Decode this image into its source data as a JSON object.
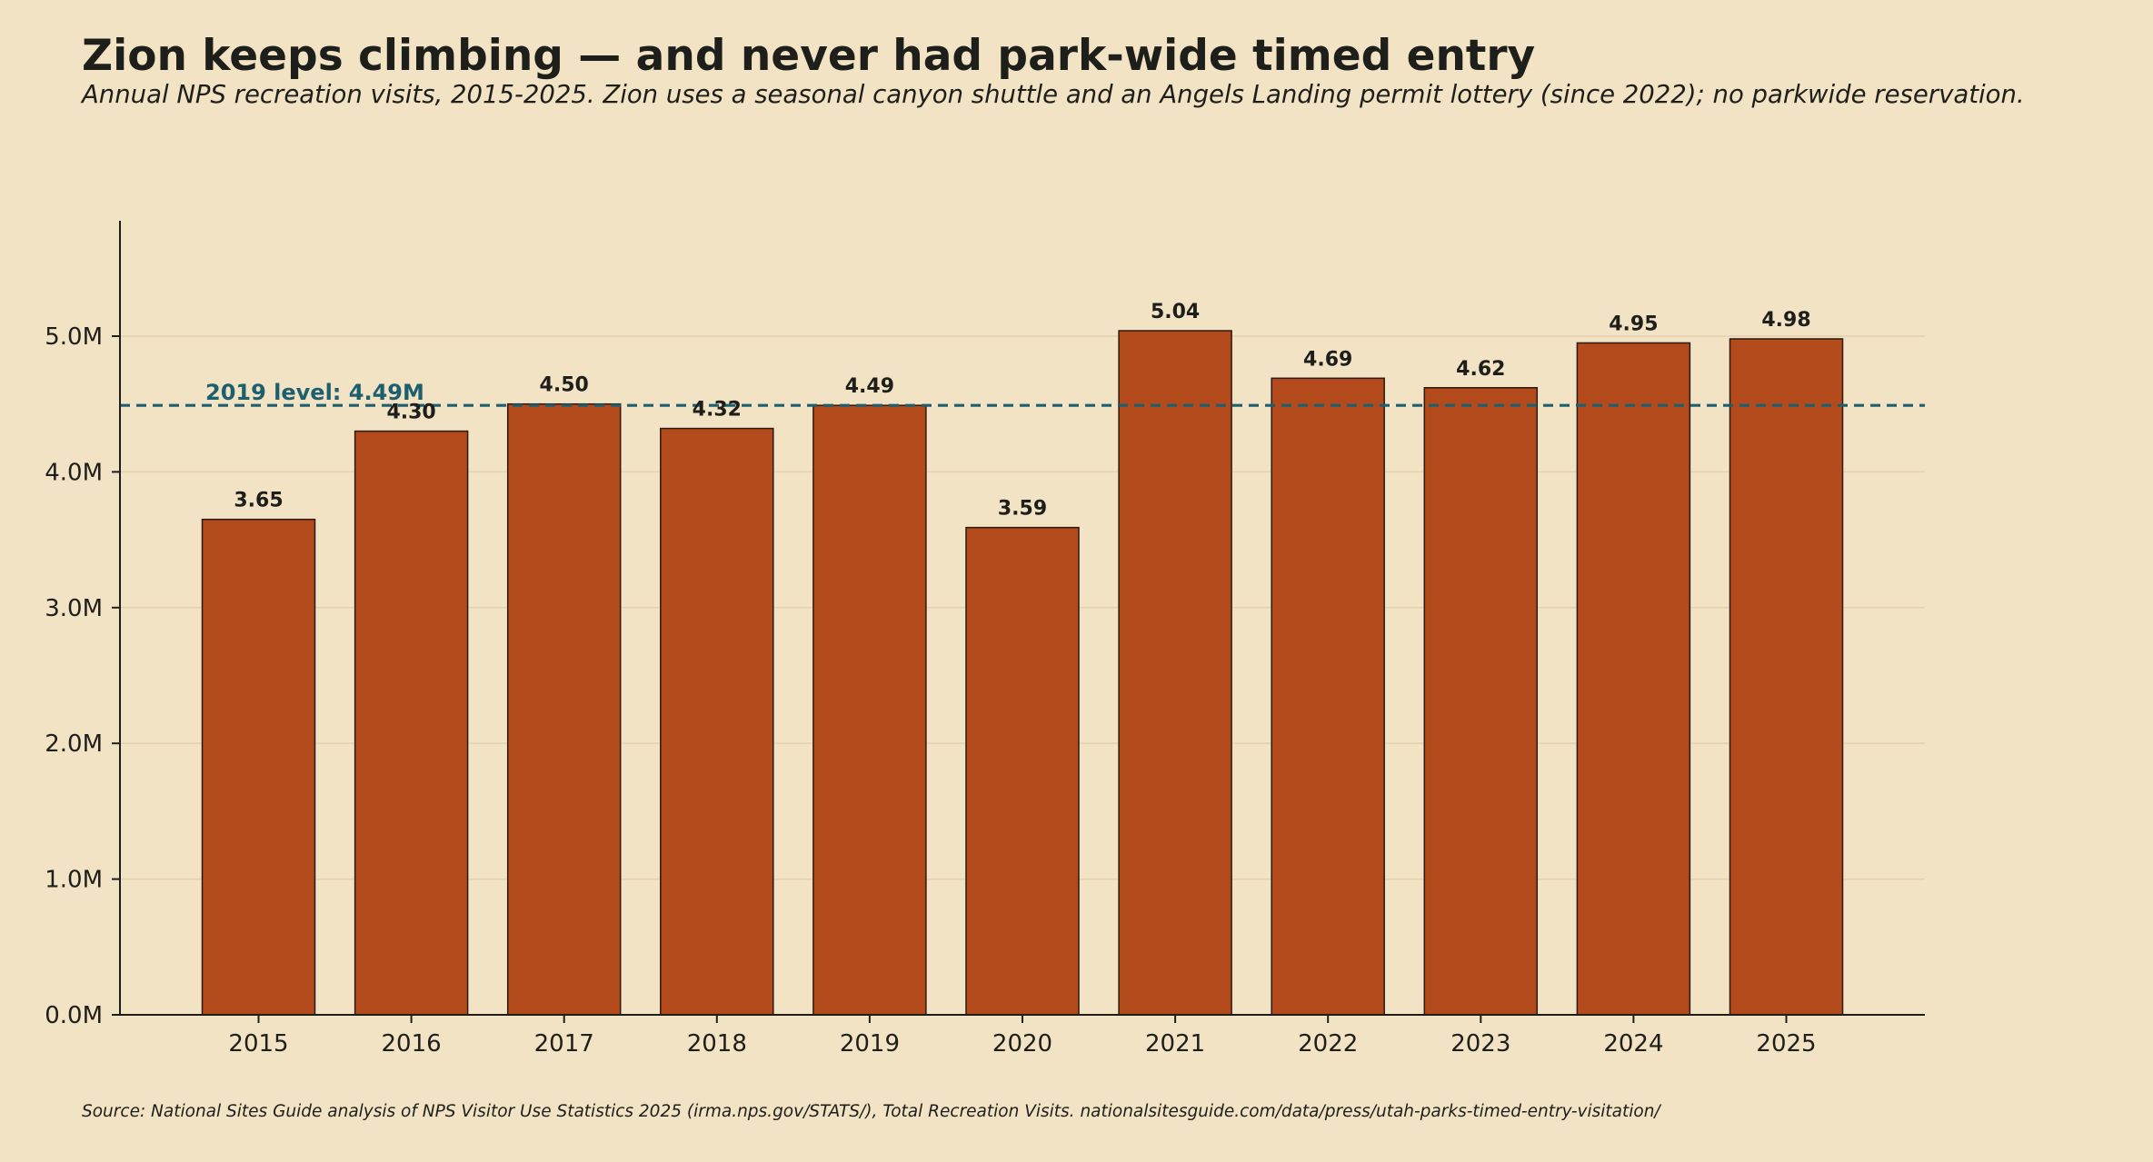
{
  "chart_data": {
    "type": "bar",
    "title": "Zion keeps climbing — and never had park-wide timed entry",
    "subtitle": "Annual NPS recreation visits, 2015-2025. Zion uses a seasonal canyon shuttle and an Angels Landing permit lottery (since 2022); no parkwide reservation.",
    "source": "Source: National Sites Guide analysis of NPS Visitor Use Statistics 2025 (irma.nps.gov/STATS/), Total Recreation Visits.  nationalsitesguide.com/data/press/utah-parks-timed-entry-visitation/",
    "xlabel": "",
    "ylabel": "",
    "categories": [
      "2015",
      "2016",
      "2017",
      "2018",
      "2019",
      "2020",
      "2021",
      "2022",
      "2023",
      "2024",
      "2025"
    ],
    "values": [
      3.65,
      4.3,
      4.5,
      4.32,
      4.49,
      3.59,
      5.04,
      4.69,
      4.62,
      4.95,
      4.98
    ],
    "value_labels": [
      "3.65",
      "4.30",
      "4.50",
      "4.32",
      "4.49",
      "3.59",
      "5.04",
      "4.69",
      "4.62",
      "4.95",
      "4.98"
    ],
    "units": "millions of visits",
    "ylim": [
      0,
      5.85
    ],
    "yticks": [
      0,
      1,
      2,
      3,
      4,
      5
    ],
    "ytick_labels": [
      "0.0M",
      "1.0M",
      "2.0M",
      "3.0M",
      "4.0M",
      "5.0M"
    ],
    "grid": "horizontal",
    "reference_line": {
      "value": 4.49,
      "label": "2019 level: 4.49M",
      "style": "dashed"
    },
    "colors": {
      "background": "#f2e3c5",
      "bar": "#b34a1b",
      "bar_edge": "#2a1a10",
      "reference_line": "#1d5f6e",
      "grid": "#e2d2b2",
      "text": "#1e1e1a"
    }
  }
}
